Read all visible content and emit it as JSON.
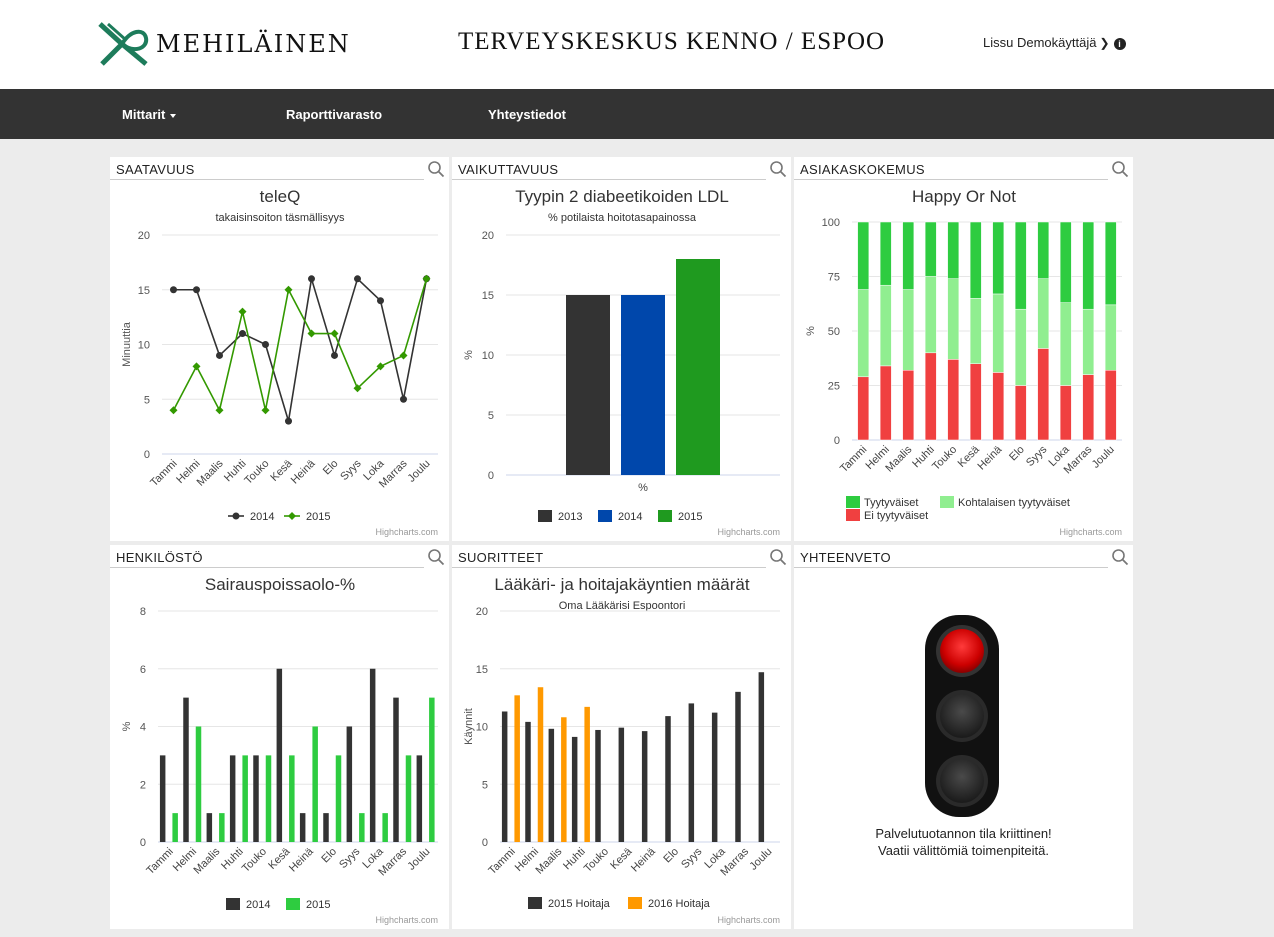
{
  "header": {
    "brand": "MEHILÄINEN",
    "site_title": "TERVEYSKESKUS KENNO / ESPOO",
    "user_name": "Lissu Demokäyttäjä",
    "user_chevron_icon": "chevron-down-icon",
    "info_icon": "info-icon"
  },
  "nav": {
    "items": [
      {
        "label": "Mittarit",
        "dropdown": true
      },
      {
        "label": "Raporttivarasto",
        "dropdown": false
      },
      {
        "label": "Yhteystiedot",
        "dropdown": false
      }
    ]
  },
  "panels": {
    "saatavuus": "SAATAVUUS",
    "vaikuttavuus": "VAIKUTTAVUUS",
    "asiakaskokemus": "ASIAKASKOKEMUS",
    "henkilosto": "HENKILÖSTÖ",
    "suoritteet": "SUORITTEET",
    "yhteenveto": "YHTEENVETO"
  },
  "credits": "Highcharts.com",
  "colors": {
    "dark": "#333333",
    "green": "#339900",
    "blue": "#0047ab",
    "green2": "#1f9a1f",
    "bright_green": "#2ecc40",
    "orange": "#ff9900",
    "ok_green": "#2ecc40",
    "mid_green": "#90ee90",
    "red": "#f04040"
  },
  "summary": {
    "line1": "Palvelutuotannon tila kriittinen!",
    "line2": "Vaatii välittömiä toimenpiteitä.",
    "light_state": "red"
  },
  "chart_data": [
    {
      "id": "teleq",
      "type": "line",
      "title": "teleQ",
      "subtitle": "takaisinsoiton täsmällisyys",
      "ylabel": "Minuuttia",
      "xlabel": "",
      "ylim": [
        0,
        20
      ],
      "yticks": [
        "0",
        "5",
        "10",
        "15",
        "20"
      ],
      "categories": [
        "Tammi",
        "Helmi",
        "Maalis",
        "Huhti",
        "Touko",
        "Kesä",
        "Heinä",
        "Elo",
        "Syys",
        "Loka",
        "Marras",
        "Joulu"
      ],
      "series": [
        {
          "name": "2014",
          "color": "#333333",
          "marker": "circle",
          "values": [
            15,
            15,
            9,
            11,
            10,
            3,
            16,
            9,
            16,
            14,
            5,
            16
          ]
        },
        {
          "name": "2015",
          "color": "#339900",
          "marker": "diamond",
          "values": [
            4,
            8,
            4,
            13,
            4,
            15,
            11,
            11,
            6,
            8,
            9,
            16
          ]
        }
      ],
      "grid": true,
      "legend": "bottom"
    },
    {
      "id": "ldl",
      "type": "bar",
      "title": "Tyypin 2 diabeetikoiden LDL",
      "subtitle": "% potilaista hoitotasapainossa",
      "ylabel": "%",
      "xlabel": "%",
      "ylim": [
        0,
        20
      ],
      "yticks": [
        "0",
        "5",
        "10",
        "15",
        "20"
      ],
      "categories": [
        "%"
      ],
      "series": [
        {
          "name": "2013",
          "color": "#333333",
          "values": [
            15
          ]
        },
        {
          "name": "2014",
          "color": "#0047ab",
          "values": [
            15
          ]
        },
        {
          "name": "2015",
          "color": "#1f9a1f",
          "values": [
            18
          ]
        }
      ],
      "grid": true,
      "legend": "bottom"
    },
    {
      "id": "happy",
      "type": "bar",
      "stacked": true,
      "title": "Happy Or Not",
      "subtitle": "",
      "ylabel": "%",
      "xlabel": "",
      "ylim": [
        0,
        100
      ],
      "yticks": [
        "0",
        "25",
        "50",
        "75",
        "100"
      ],
      "categories": [
        "Tammi",
        "Helmi",
        "Maalis",
        "Huhti",
        "Touko",
        "Kesä",
        "Heinä",
        "Elo",
        "Syys",
        "Loka",
        "Marras",
        "Joulu"
      ],
      "series": [
        {
          "name": "Ei tyytyväiset",
          "color": "#f04040",
          "values": [
            29,
            34,
            32,
            40,
            37,
            35,
            31,
            25,
            42,
            25,
            30,
            32
          ]
        },
        {
          "name": "Kohtalaisen tyytyväiset",
          "color": "#90ee90",
          "values": [
            40,
            37,
            37,
            35,
            37,
            30,
            36,
            35,
            32,
            38,
            30,
            30
          ]
        },
        {
          "name": "Tyytyväiset",
          "color": "#2ecc40",
          "values": [
            31,
            29,
            31,
            25,
            26,
            35,
            33,
            40,
            26,
            37,
            40,
            38
          ]
        }
      ],
      "legend_order": [
        "Tyytyväiset",
        "Kohtalaisen tyytyväiset",
        "Ei tyytyväiset"
      ],
      "grid": true,
      "legend": "bottom"
    },
    {
      "id": "sairaus",
      "type": "bar",
      "title": "Sairauspoissaolo-%",
      "subtitle": "",
      "ylabel": "%",
      "xlabel": "",
      "ylim": [
        0,
        8
      ],
      "yticks": [
        "0",
        "2",
        "4",
        "6",
        "8"
      ],
      "categories": [
        "Tammi",
        "Helmi",
        "Maalis",
        "Huhti",
        "Touko",
        "Kesä",
        "Heinä",
        "Elo",
        "Syys",
        "Loka",
        "Marras",
        "Joulu"
      ],
      "series": [
        {
          "name": "2014",
          "color": "#333333",
          "values": [
            3,
            5,
            1,
            3,
            3,
            6,
            1,
            1,
            4,
            6,
            5,
            3
          ]
        },
        {
          "name": "2015",
          "color": "#2ecc40",
          "values": [
            1,
            4,
            1,
            3,
            3,
            3,
            4,
            3,
            1,
            1,
            3,
            5
          ]
        }
      ],
      "grid": true,
      "legend": "bottom"
    },
    {
      "id": "kaynnit",
      "type": "bar",
      "title": "Lääkäri- ja hoitajakäyntien määrät",
      "subtitle": "Oma Lääkärisi Espoontori",
      "ylabel": "Käynnit",
      "xlabel": "",
      "ylim": [
        0,
        20
      ],
      "yticks": [
        "0",
        "5",
        "10",
        "15",
        "20"
      ],
      "categories": [
        "Tammi",
        "Helmi",
        "Maalis",
        "Huhti",
        "Touko",
        "Kesä",
        "Heinä",
        "Elo",
        "Syys",
        "Loka",
        "Marras",
        "Joulu"
      ],
      "series": [
        {
          "name": "2015 Hoitaja",
          "color": "#333333",
          "values": [
            11.3,
            10.4,
            9.8,
            9.1,
            9.7,
            9.9,
            9.6,
            10.9,
            12.0,
            11.2,
            13.0,
            14.7
          ]
        },
        {
          "name": "2016 Hoitaja",
          "color": "#ff9900",
          "values": [
            12.7,
            13.4,
            10.8,
            11.7,
            null,
            null,
            null,
            null,
            null,
            null,
            null,
            null
          ]
        }
      ],
      "grid": true,
      "legend": "bottom"
    }
  ]
}
